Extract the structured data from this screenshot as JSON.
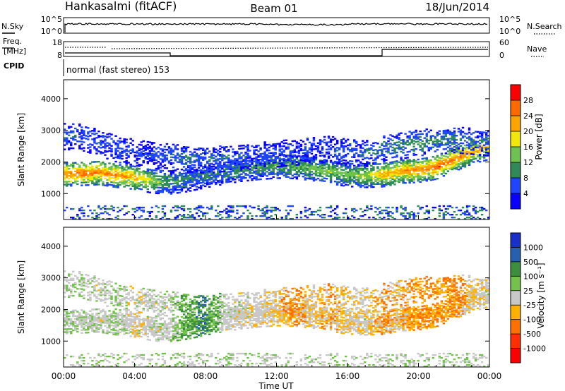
{
  "header": {
    "station": "Hankasalmi (fitACF)",
    "beam": "Beam 01",
    "date": "18/Jun/2014"
  },
  "nsky_panel": {
    "left_label": "N.Sky",
    "left_ticks": [
      "10^5",
      "10^0"
    ],
    "right_label": "N.Search",
    "right_ticks": [
      "10^5",
      "10^0"
    ]
  },
  "freq_panel": {
    "left_label_1": "Freq.",
    "left_label_2": "[MHz]",
    "left_ticks": [
      "18",
      "8"
    ],
    "right_label": "Nave",
    "right_ticks": [
      "60",
      "0"
    ]
  },
  "cpid_panel": {
    "label": "CPID",
    "mode": "normal (fast stereo) 153"
  },
  "x_axis": {
    "ticks": [
      "00:00",
      "04:00",
      "08:00",
      "12:00",
      "16:00",
      "20:00",
      "00:00"
    ],
    "label": "Time UT"
  },
  "power_panel": {
    "ylabel": "Slant Range [km]",
    "yticks": [
      "4000",
      "3000",
      "2000",
      "1000"
    ],
    "colorbar_label": "Power [dB]",
    "colorbar_ticks": [
      "28",
      "24",
      "20",
      "16",
      "12",
      "8",
      "4"
    ],
    "colorbar_colors": [
      "#ff0000",
      "#ff6a00",
      "#ffa300",
      "#f2e60b",
      "#6ec250",
      "#2e8b57",
      "#1f45ff",
      "#0a00ff"
    ]
  },
  "velocity_panel": {
    "ylabel": "Slant Range [km]",
    "yticks": [
      "4000",
      "3000",
      "2000",
      "1000"
    ],
    "colorbar_label": "Velocity  [m s⁻¹]",
    "colorbar_ticks": [
      "1000",
      "500",
      "100",
      "25",
      "-25",
      "-100",
      "-500",
      "-1000"
    ],
    "colorbar_colors": [
      "#1a2fc9",
      "#2660b0",
      "#3c8f3c",
      "#74c24c",
      "#c8c8c8",
      "#ffb000",
      "#ff7000",
      "#ff3000",
      "#ff0000"
    ]
  },
  "chart_data": [
    {
      "type": "heatmap",
      "title": "Power",
      "xlabel": "Time UT",
      "ylabel": "Slant Range [km]",
      "xlim": [
        0,
        24
      ],
      "ylim": [
        180,
        4600
      ],
      "zlabel": "Power [dB]",
      "zlim": [
        0,
        32
      ],
      "bands": [
        {
          "name": "main",
          "center_km": [
            1600,
            1620,
            1650,
            1560,
            1500,
            1380,
            1350,
            1430,
            1550,
            1660,
            1750,
            1810,
            1850,
            1840,
            1780,
            1680,
            1590,
            1560,
            1580,
            1690,
            1720,
            1820,
            2060,
            2300,
            2450
          ],
          "power_db": [
            24,
            26,
            25,
            24,
            22,
            16,
            11,
            9,
            9,
            10,
            11,
            11,
            12,
            13,
            14,
            15,
            14,
            16,
            22,
            23,
            24,
            27,
            25,
            22,
            20
          ]
        },
        {
          "name": "upper",
          "center_km": [
            2800,
            2780,
            2600,
            2400,
            2300,
            2200,
            2150,
            2100,
            2050,
            2100,
            2150,
            2200,
            2250,
            2300,
            2350,
            2400,
            2300,
            2250,
            2400,
            2500,
            2600,
            2650,
            2700,
            2650,
            2600
          ],
          "power_db": [
            8,
            7,
            6,
            6,
            5,
            6,
            8,
            9,
            8,
            7,
            7,
            6,
            6,
            5,
            6,
            6,
            7,
            8,
            9,
            10,
            11,
            10,
            9,
            8,
            7
          ]
        }
      ],
      "ground_clutter_km": [
        180,
        600
      ]
    },
    {
      "type": "heatmap",
      "title": "Velocity",
      "xlabel": "Time UT",
      "ylabel": "Slant Range [km]",
      "xlim": [
        0,
        24
      ],
      "ylim": [
        180,
        4600
      ],
      "zlabel": "Velocity [m s⁻¹]",
      "zlim": [
        -1000,
        1000
      ],
      "velocity_ms": [
        30,
        40,
        10,
        50,
        -20,
        10,
        5,
        400,
        600,
        0,
        0,
        -10,
        -40,
        -200,
        -30,
        -120,
        -60,
        -20,
        -150,
        -80,
        -300,
        -400,
        -200,
        -50,
        0
      ]
    }
  ]
}
